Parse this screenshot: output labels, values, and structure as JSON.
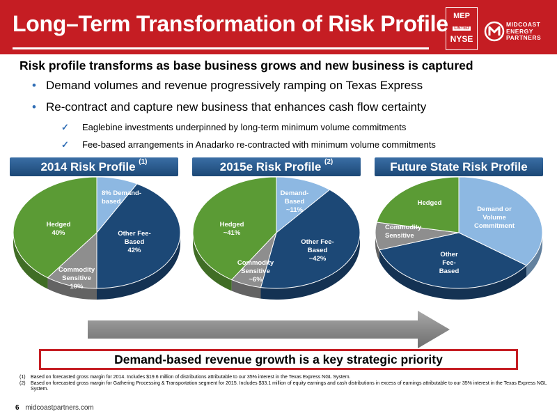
{
  "header": {
    "title": "Long–Term Transformation of Risk Profile",
    "badge": {
      "top": "MEP",
      "middle": "LISTED",
      "bottom": "NYSE"
    },
    "logo": {
      "line1": "MIDCOAST",
      "line2": "ENERGY",
      "line3": "PARTNERS"
    },
    "accent_color": "#c51d23"
  },
  "headline": "Risk profile transforms as base business grows and new business is captured",
  "bullets": [
    "Demand volumes and revenue progressively ramping on Texas Express",
    "Re-contract and capture new business that enhances cash flow certainty"
  ],
  "sub_bullets": [
    "Eaglebine investments underpinned by long-term minimum volume commitments",
    "Fee-based arrangements in Anadarko re-contracted with minimum volume commitments"
  ],
  "profiles": [
    {
      "title": "2014 Risk Profile",
      "note": "(1)"
    },
    {
      "title": "2015e Risk Profile",
      "note": "(2)"
    },
    {
      "title": "Future State Risk Profile",
      "note": ""
    }
  ],
  "chart_data": [
    {
      "type": "pie",
      "title": "2014 Risk Profile (1)",
      "slices": [
        {
          "label": "8% Demand-based",
          "value": 8,
          "color": "#8db8e2"
        },
        {
          "label": "Other Fee-Based 42%",
          "value": 42,
          "color": "#1c4876"
        },
        {
          "label": "Commodity Sensitive 10%",
          "value": 10,
          "color": "#8e8e8e"
        },
        {
          "label": "Hedged 40%",
          "value": 40,
          "color": "#5b9b35"
        }
      ]
    },
    {
      "type": "pie",
      "title": "2015e Risk Profile (2)",
      "slices": [
        {
          "label": "Demand-Based ~11%",
          "value": 11,
          "color": "#8db8e2"
        },
        {
          "label": "Other Fee-Based ~42%",
          "value": 42,
          "color": "#1c4876"
        },
        {
          "label": "Commodity Sensitive ~6%",
          "value": 6,
          "color": "#8e8e8e"
        },
        {
          "label": "Hedged ~41%",
          "value": 41,
          "color": "#5b9b35"
        }
      ]
    },
    {
      "type": "pie",
      "title": "Future State Risk Profile",
      "slices": [
        {
          "label": "Demand or Volume Commitment",
          "value": 35,
          "color": "#8db8e2"
        },
        {
          "label": "Other Fee-Based",
          "value": 35,
          "color": "#1c4876"
        },
        {
          "label": "Commodity Sensitive",
          "value": 8,
          "color": "#8e8e8e"
        },
        {
          "label": "Hedged",
          "value": 22,
          "color": "#5b9b35"
        }
      ]
    }
  ],
  "labels": {
    "c1": {
      "demand_a": "8% Demand-",
      "demand_b": "based",
      "fee_a": "Other Fee-",
      "fee_b": "Based",
      "fee_c": "42%",
      "comm_a": "Commodity",
      "comm_b": "Sensitive",
      "comm_c": "10%",
      "hedged_a": "Hedged",
      "hedged_b": "40%"
    },
    "c2": {
      "demand_a": "Demand-",
      "demand_b": "Based",
      "demand_c": "~11%",
      "fee_a": "Other Fee-",
      "fee_b": "Based",
      "fee_c": "~42%",
      "comm_a": "Commodity",
      "comm_b": "Sensitive",
      "comm_c": "~6%",
      "hedged_a": "Hedged",
      "hedged_b": "~41%"
    },
    "c3": {
      "demand_a": "Demand or",
      "demand_b": "Volume",
      "demand_c": "Commitment",
      "fee_a": "Other",
      "fee_b": "Fee-",
      "fee_c": "Based",
      "comm_a": "Commodity",
      "comm_b": "Sensitive",
      "hedged_a": "Hedged"
    }
  },
  "key_message": "Demand-based revenue growth is a key strategic priority",
  "footnotes": [
    {
      "num": "(1)",
      "text": "Based on forecasted gross margin for 2014. Includes $19.6 million of distributions attributable to our 35% interest in the Texas Express NGL System."
    },
    {
      "num": "(2)",
      "text": "Based on forecasted gross margin for Gathering Processing  & Transportation segment for 2015. Includes $33.1 million of equity earnings and cash distributions in excess of earnings attributable to our 35% interest in the Texas Express NGL System."
    }
  ],
  "footer": {
    "page": "6",
    "site": "midcoastpartners.com"
  }
}
